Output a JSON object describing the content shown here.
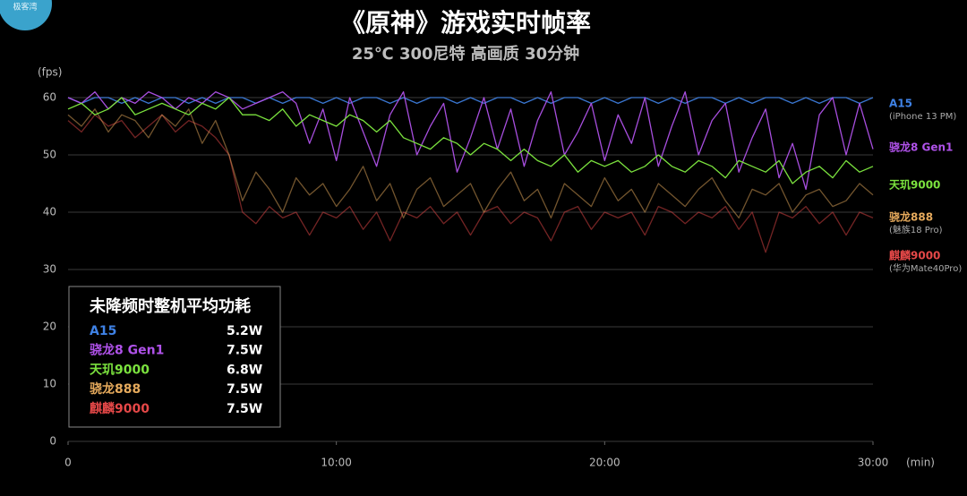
{
  "chart_data": {
    "type": "line",
    "watermark": "极客湾",
    "title": "《原神》游戏实时帧率",
    "subtitle": "25℃ 300尼特 高画质 30分钟",
    "y_label": "(fps)",
    "x_label": "(min)",
    "xlim": [
      0,
      30
    ],
    "xticks": [
      0,
      {
        "value": 10,
        "label": "10:00"
      },
      {
        "value": 20,
        "label": "20:00"
      },
      {
        "value": 30,
        "label": "30:00"
      }
    ],
    "ylim": [
      0,
      62
    ],
    "yticks": [
      0,
      10,
      20,
      30,
      40,
      50,
      60
    ],
    "grid": true,
    "legend": "right",
    "x": [
      0,
      0.5,
      1,
      1.5,
      2,
      2.5,
      3,
      3.5,
      4,
      4.5,
      5,
      5.5,
      6,
      6.5,
      7,
      7.5,
      8,
      8.5,
      9,
      9.5,
      10,
      10.5,
      11,
      11.5,
      12,
      12.5,
      13,
      13.5,
      14,
      14.5,
      15,
      15.5,
      16,
      16.5,
      17,
      17.5,
      18,
      18.5,
      19,
      19.5,
      20,
      20.5,
      21,
      21.5,
      22,
      22.5,
      23,
      23.5,
      24,
      24.5,
      25,
      25.5,
      26,
      26.5,
      27,
      27.5,
      28,
      28.5,
      29,
      29.5,
      30
    ],
    "series": [
      {
        "name": "A15",
        "note": "(iPhone 13 PM)",
        "color": "#3f82e6",
        "values": [
          60,
          59,
          60,
          60,
          59,
          60,
          59,
          60,
          60,
          59,
          60,
          59,
          60,
          60,
          59,
          60,
          59,
          60,
          60,
          59,
          60,
          59,
          60,
          60,
          59,
          60,
          59,
          60,
          60,
          59,
          60,
          59,
          60,
          60,
          59,
          60,
          59,
          60,
          60,
          59,
          60,
          59,
          60,
          60,
          59,
          60,
          59,
          60,
          60,
          59,
          60,
          59,
          60,
          60,
          59,
          60,
          59,
          60,
          60,
          59,
          60
        ]
      },
      {
        "name": "骁龙8 Gen1",
        "color": "#b052ea",
        "values": [
          60,
          59,
          61,
          58,
          60,
          59,
          61,
          60,
          58,
          60,
          59,
          61,
          60,
          58,
          59,
          60,
          61,
          59,
          52,
          58,
          49,
          60,
          54,
          48,
          57,
          61,
          50,
          55,
          59,
          47,
          53,
          60,
          51,
          58,
          48,
          56,
          61,
          50,
          54,
          59,
          49,
          57,
          52,
          60,
          48,
          55,
          61,
          50,
          56,
          59,
          47,
          53,
          58,
          46,
          52,
          44,
          57,
          60,
          50,
          59,
          51
        ]
      },
      {
        "name": "天玑9000",
        "color": "#7be23e",
        "values": [
          58,
          59,
          57,
          58,
          60,
          57,
          58,
          59,
          58,
          57,
          59,
          58,
          60,
          57,
          57,
          56,
          58,
          55,
          57,
          56,
          55,
          57,
          56,
          54,
          56,
          53,
          52,
          51,
          53,
          52,
          50,
          52,
          51,
          49,
          51,
          49,
          48,
          50,
          47,
          49,
          48,
          49,
          47,
          48,
          50,
          48,
          47,
          49,
          48,
          46,
          49,
          48,
          47,
          49,
          45,
          47,
          48,
          46,
          49,
          47,
          48
        ]
      },
      {
        "name": "骁龙888",
        "note": "(魅族18 Pro)",
        "color": "#e6aa5c",
        "values": [
          57,
          55,
          58,
          54,
          57,
          56,
          53,
          57,
          55,
          58,
          52,
          56,
          50,
          42,
          47,
          44,
          40,
          46,
          43,
          45,
          41,
          44,
          48,
          42,
          45,
          39,
          44,
          46,
          41,
          43,
          45,
          40,
          44,
          47,
          42,
          44,
          39,
          45,
          43,
          41,
          46,
          42,
          44,
          40,
          45,
          43,
          41,
          44,
          46,
          42,
          39,
          44,
          43,
          45,
          40,
          43,
          44,
          41,
          42,
          45,
          43
        ]
      },
      {
        "name": "麒麟9000",
        "note": "(华为Mate40Pro)",
        "color": "#e54848",
        "values": [
          56,
          54,
          57,
          55,
          56,
          53,
          55,
          57,
          54,
          56,
          55,
          53,
          50,
          40,
          38,
          41,
          39,
          40,
          36,
          40,
          39,
          41,
          37,
          40,
          35,
          40,
          39,
          41,
          38,
          40,
          36,
          40,
          41,
          38,
          40,
          39,
          35,
          40,
          41,
          37,
          40,
          39,
          40,
          36,
          41,
          40,
          38,
          40,
          39,
          41,
          37,
          40,
          33,
          40,
          39,
          41,
          38,
          40,
          36,
          40,
          39
        ]
      }
    ],
    "table": {
      "title": "未降频时整机平均功耗",
      "rows": [
        [
          "A15",
          "5.2W"
        ],
        [
          "骁龙8 Gen1",
          "7.5W"
        ],
        [
          "天玑9000",
          "6.8W"
        ],
        [
          "骁龙888",
          "7.5W"
        ],
        [
          "麒麟9000",
          "7.5W"
        ]
      ]
    }
  }
}
